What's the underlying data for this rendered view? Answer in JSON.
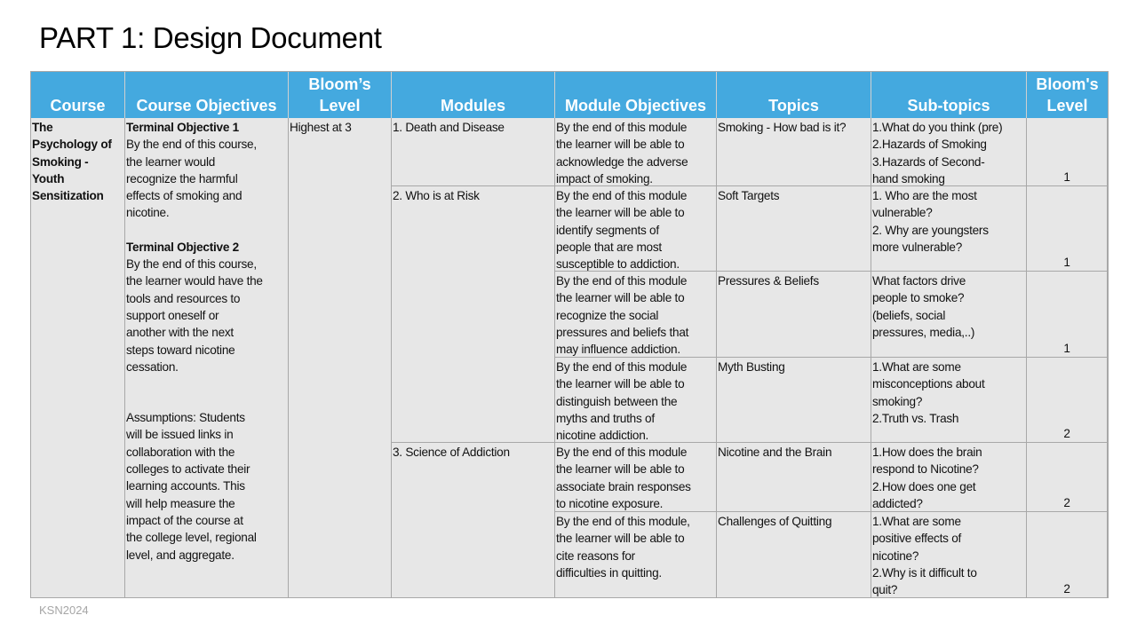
{
  "title": "PART 1: Design Document",
  "footer": "KSN2024",
  "colors": {
    "header_bg": "#44a9df",
    "cell_bg": "#e7e7e7"
  },
  "headers": [
    "Course",
    "Course Objectives",
    "Bloom’s\nLevel",
    "Modules",
    "Module Objectives",
    "Topics",
    "Sub-topics",
    "Bloom's\nLevel"
  ],
  "course": "The\nPsychology of\nSmoking -\nYouth\nSensitization",
  "course_objectives": {
    "obj1_title": "Terminal Objective 1",
    "obj1_text": "By the end of this course,\nthe learner would\nrecognize the harmful\neffects of smoking and\nnicotine.",
    "obj2_title": "Terminal Objective 2",
    "obj2_text": "By the end of this course,\nthe learner would have the\ntools and resources to\nsupport oneself or\nanother with the next\nsteps toward nicotine\ncessation.",
    "assumptions": "Assumptions: Students\nwill be issued links in\ncollaboration with the\ncolleges to activate their\nlearning accounts. This\nwill help measure the\nimpact of the course at\nthe college level, regional\nlevel, and aggregate."
  },
  "course_blooms_level": "Highest at 3",
  "modules": [
    "1. Death and Disease",
    "2. Who is at Risk",
    "3. Science of Addiction"
  ],
  "rows": [
    {
      "objective": "By the end of this module\nthe learner will be able to\nacknowledge the adverse\nimpact of smoking.",
      "topic": "Smoking - How bad is it?",
      "subtopics": "1.What do you think (pre)\n2.Hazards of Smoking\n3.Hazards of Second-\nhand smoking",
      "level": "1"
    },
    {
      "objective": "By the end of this module\nthe learner will be able to\nidentify segments of\npeople that are most\nsusceptible to addiction.",
      "topic": "Soft Targets",
      "subtopics": "1. Who are the most\nvulnerable?\n2. Why are youngsters\nmore vulnerable?",
      "level": "1"
    },
    {
      "objective": "By the end of this module\nthe learner will be able to\nrecognize the social\npressures and beliefs that\nmay influence addiction.",
      "topic": "Pressures & Beliefs",
      "subtopics": "What factors drive\npeople to smoke?\n(beliefs, social\npressures, media,..)",
      "level": "1"
    },
    {
      "objective": "By the end of this module\nthe learner will be able to\ndistinguish between the\nmyths and truths of\nnicotine addiction.",
      "topic": "Myth Busting",
      "subtopics": "1.What are some\nmisconceptions about\nsmoking?\n2.Truth vs. Trash",
      "level": "2"
    },
    {
      "objective": "By the end of this module\nthe learner will be able to\nassociate brain responses\nto nicotine exposure.",
      "topic": "Nicotine and the Brain",
      "subtopics": "1.How does the brain\nrespond to Nicotine?\n2.How does one get\naddicted?",
      "level": "2"
    },
    {
      "objective": "By the end of this module,\nthe learner will be able to\ncite reasons for\ndifficulties in quitting.",
      "topic": "Challenges of Quitting",
      "subtopics": "1.What are some\npositive effects of\nnicotine?\n2.Why is it difficult to\nquit?",
      "level": "2"
    }
  ]
}
